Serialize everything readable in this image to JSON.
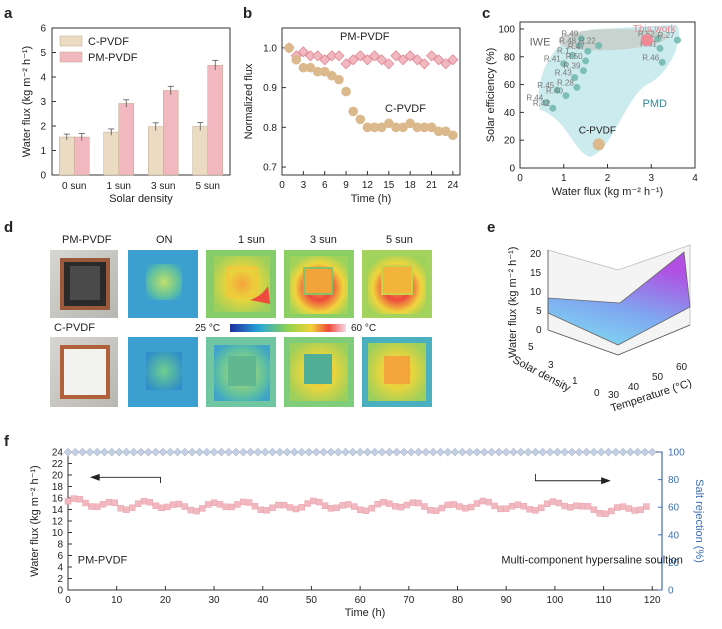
{
  "panels": {
    "a": "a",
    "b": "b",
    "c": "c",
    "d": "d",
    "e": "e",
    "f": "f"
  },
  "chart_data": [
    {
      "id": "a",
      "type": "bar",
      "categories": [
        "0 sun",
        "1 sun",
        "3 sun",
        "5 sun"
      ],
      "series": [
        {
          "name": "C-PVDF",
          "values": [
            1.55,
            1.75,
            1.97,
            1.98
          ],
          "errors": [
            0.12,
            0.13,
            0.16,
            0.16
          ],
          "color": "#eadbc2"
        },
        {
          "name": "PM-PVDF",
          "values": [
            1.55,
            2.92,
            3.45,
            4.48
          ],
          "errors": [
            0.14,
            0.15,
            0.17,
            0.2
          ],
          "color": "#f2b8c0"
        }
      ],
      "xlabel": "Solar density",
      "ylabel": "Water flux (kg m⁻² h⁻¹)",
      "ylim": [
        0,
        6
      ],
      "yticks": [
        "0",
        "1",
        "2",
        "3",
        "4",
        "5",
        "6"
      ]
    },
    {
      "id": "b",
      "type": "scatter",
      "series": [
        {
          "name": "PM-PVDF",
          "marker": "diamond",
          "color": "#f2b8c0",
          "x": [
            1,
            2,
            3,
            4,
            5,
            6,
            7,
            8,
            9,
            10,
            11,
            12,
            13,
            14,
            15,
            16,
            17,
            18,
            19,
            20,
            21,
            22,
            23,
            24
          ],
          "y": [
            1.0,
            0.98,
            0.99,
            0.98,
            0.98,
            0.97,
            0.98,
            0.98,
            0.96,
            0.97,
            0.98,
            0.97,
            0.98,
            0.97,
            0.96,
            0.98,
            0.97,
            0.98,
            0.97,
            0.96,
            0.98,
            0.97,
            0.96,
            0.97
          ]
        },
        {
          "name": "C-PVDF",
          "marker": "circle",
          "color": "#dcb98c",
          "x": [
            1,
            2,
            3,
            4,
            5,
            6,
            7,
            8,
            9,
            10,
            11,
            12,
            13,
            14,
            15,
            16,
            17,
            18,
            19,
            20,
            21,
            22,
            23,
            24
          ],
          "y": [
            1.0,
            0.97,
            0.95,
            0.95,
            0.94,
            0.94,
            0.93,
            0.92,
            0.89,
            0.84,
            0.82,
            0.8,
            0.8,
            0.8,
            0.81,
            0.8,
            0.8,
            0.81,
            0.8,
            0.8,
            0.8,
            0.79,
            0.79,
            0.78
          ]
        }
      ],
      "xlabel": "Time (h)",
      "ylabel": "Normalized flux",
      "xlim": [
        0,
        25
      ],
      "ylim": [
        0.68,
        1.05
      ],
      "xticks": [
        "0",
        "3",
        "6",
        "9",
        "12",
        "15",
        "18",
        "21",
        "24"
      ],
      "yticks": [
        "0.7",
        "0.8",
        "0.9",
        "1.0"
      ]
    },
    {
      "id": "c",
      "type": "scatter",
      "xlabel": "Water flux  (kg m⁻² h⁻¹)",
      "ylabel": "Solar efficiency (%)",
      "xlim": [
        0,
        4
      ],
      "ylim": [
        0,
        105
      ],
      "xticks": [
        "0",
        "1",
        "2",
        "3",
        "4"
      ],
      "yticks": [
        "0",
        "20",
        "40",
        "60",
        "80",
        "100"
      ],
      "region_labels": [
        "IWE",
        "PMD"
      ],
      "points": [
        {
          "label": "R.49",
          "x": 1.4,
          "y": 93
        },
        {
          "label": "R.48",
          "x": 1.35,
          "y": 88
        },
        {
          "label": "R.22",
          "x": 1.8,
          "y": 88
        },
        {
          "label": "R.47",
          "x": 1.55,
          "y": 84
        },
        {
          "label": "R.1",
          "x": 1.2,
          "y": 81
        },
        {
          "label": "R.50",
          "x": 1.5,
          "y": 77
        },
        {
          "label": "R.41",
          "x": 1.0,
          "y": 75
        },
        {
          "label": "R.39",
          "x": 1.45,
          "y": 70
        },
        {
          "label": "R.43",
          "x": 1.25,
          "y": 65
        },
        {
          "label": "R.28",
          "x": 1.3,
          "y": 58
        },
        {
          "label": "R.45",
          "x": 0.85,
          "y": 56
        },
        {
          "label": "R.40",
          "x": 1.05,
          "y": 52
        },
        {
          "label": "R.44",
          "x": 0.6,
          "y": 47
        },
        {
          "label": "R.42",
          "x": 0.75,
          "y": 43
        },
        {
          "label": "R.52",
          "x": 3.15,
          "y": 93
        },
        {
          "label": "R.27",
          "x": 3.6,
          "y": 92
        },
        {
          "label": "R.51",
          "x": 3.2,
          "y": 86
        },
        {
          "label": "R.46",
          "x": 3.25,
          "y": 76
        }
      ],
      "highlights": [
        {
          "label": "This work",
          "x": 2.9,
          "y": 92,
          "color": "#ef8a96"
        },
        {
          "label": "C-PVDF",
          "x": 1.8,
          "y": 17,
          "color": "#dcb98c"
        }
      ]
    },
    {
      "id": "d",
      "type": "heatmap",
      "rows": [
        "PM-PVDF",
        "C-PVDF"
      ],
      "columns": [
        "ON",
        "1 sun",
        "3 sun",
        "5 sun"
      ],
      "scale_min": "25 °C",
      "scale_max": "60 °C"
    },
    {
      "id": "e",
      "type": "area",
      "zlabel": "Water flux (kg m⁻² h⁻¹)",
      "xlabel": "Temperature (°C)",
      "ylabel": "Solar density",
      "zticks": [
        "0",
        "5",
        "10",
        "15",
        "20"
      ],
      "xticks": [
        "30",
        "40",
        "50",
        "60"
      ],
      "yticks": [
        "0",
        "1",
        "3",
        "5"
      ]
    },
    {
      "id": "f",
      "type": "scatter",
      "xlabel": "Time (h)",
      "ylabel_left": "Water flux (kg m⁻² h⁻¹)",
      "ylabel_right": "Salt rejection (%)",
      "xlim": [
        0,
        122
      ],
      "ylim_left": [
        0,
        24
      ],
      "ylim_right": [
        0,
        100
      ],
      "xticks": [
        "0",
        "10",
        "20",
        "30",
        "40",
        "50",
        "60",
        "70",
        "80",
        "90",
        "100",
        "110",
        "120"
      ],
      "yticks_left": [
        "0",
        "2",
        "4",
        "6",
        "8",
        "10",
        "12",
        "14",
        "16",
        "18",
        "20",
        "22",
        "24"
      ],
      "yticks_right": [
        "0",
        "20",
        "40",
        "60",
        "80",
        "100"
      ],
      "flux_mean": 14.6,
      "rejection": 99.9,
      "labels": [
        "PM-PVDF",
        "Multi-component hypersaline soultion"
      ]
    }
  ]
}
